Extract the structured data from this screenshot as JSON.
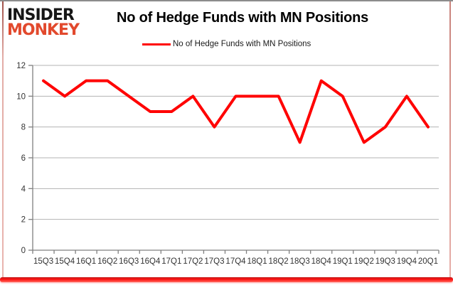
{
  "logo": {
    "line1": "INSIDER",
    "line2": "MONKEY"
  },
  "header": {
    "title": "No of Hedge Funds with MN Positions"
  },
  "legend": {
    "label": "No of Hedge Funds with MN Positions",
    "line_color": "#ff0000"
  },
  "chart_data": {
    "type": "line",
    "title": "No of Hedge Funds with MN Positions",
    "categories": [
      "15Q3",
      "15Q4",
      "16Q1",
      "16Q2",
      "16Q3",
      "16Q4",
      "17Q1",
      "17Q2",
      "17Q3",
      "17Q4",
      "18Q1",
      "18Q2",
      "18Q3",
      "18Q4",
      "19Q1",
      "19Q2",
      "19Q3",
      "19Q4",
      "20Q1"
    ],
    "series": [
      {
        "name": "No of Hedge Funds with MN Positions",
        "color": "#ff0000",
        "values": [
          11,
          10,
          11,
          11,
          10,
          9,
          9,
          10,
          8,
          10,
          10,
          10,
          7,
          11,
          10,
          7,
          8,
          10,
          8
        ]
      }
    ],
    "xlabel": "",
    "ylabel": "",
    "ylim": [
      0,
      12
    ],
    "yticks": [
      0,
      2,
      4,
      6,
      8,
      10,
      12
    ],
    "grid": true,
    "legend_position": "top-center"
  },
  "colors": {
    "series_line": "#ff0000",
    "gridline": "#b3b3b3",
    "axis": "#808080",
    "tick_label": "#333333",
    "title_text": "#000000",
    "logo_black": "#161616",
    "logo_red": "#e2492d",
    "frame_red": "#ff1111"
  }
}
